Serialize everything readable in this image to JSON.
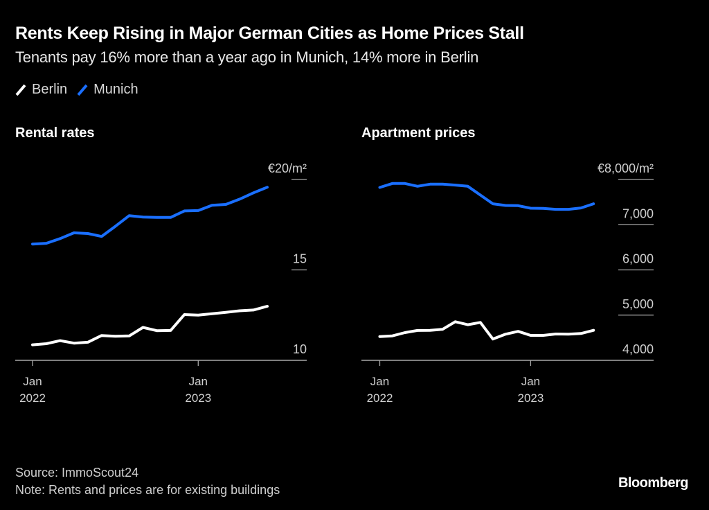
{
  "header": {
    "title": "Rents Keep Rising in Major German Cities as Home Prices Stall",
    "subtitle": "Tenants pay 16% more than a year ago in Munich, 14% more in Berlin"
  },
  "legend": [
    {
      "name": "Berlin",
      "color": "#ffffff"
    },
    {
      "name": "Munich",
      "color": "#1a6fff"
    }
  ],
  "footer": {
    "source": "Source: ImmoScout24",
    "note": "Note: Rents and prices are for existing buildings",
    "brand": "Bloomberg"
  },
  "chart_data": [
    {
      "type": "line",
      "title": "Rental rates",
      "ylabel": "€20/m²",
      "ylim": [
        10,
        20
      ],
      "yticks": [
        {
          "value": 20,
          "label": "€20/m²"
        },
        {
          "value": 15,
          "label": "15"
        },
        {
          "value": 10,
          "label": "10"
        }
      ],
      "xticks": [
        {
          "index": 0,
          "label": [
            "Jan",
            "2022"
          ]
        },
        {
          "index": 12,
          "label": [
            "Jan",
            "2023"
          ]
        }
      ],
      "x": [
        "2022-01",
        "2022-02",
        "2022-03",
        "2022-04",
        "2022-05",
        "2022-06",
        "2022-07",
        "2022-08",
        "2022-09",
        "2022-10",
        "2022-11",
        "2022-12",
        "2023-01",
        "2023-02",
        "2023-03",
        "2023-04",
        "2023-05",
        "2023-06"
      ],
      "series": [
        {
          "name": "Munich",
          "color": "#1a6fff",
          "values": [
            16.43,
            16.47,
            16.73,
            17.05,
            17.01,
            16.85,
            17.41,
            18.0,
            17.92,
            17.9,
            17.9,
            18.26,
            18.28,
            18.57,
            18.62,
            18.91,
            19.26,
            19.57
          ]
        },
        {
          "name": "Berlin",
          "color": "#ffffff",
          "values": [
            10.86,
            10.92,
            11.09,
            10.95,
            11.0,
            11.37,
            11.33,
            11.35,
            11.82,
            11.64,
            11.65,
            12.53,
            12.5,
            12.58,
            12.65,
            12.74,
            12.78,
            12.99
          ]
        }
      ],
      "grid": true,
      "legend": "top-left"
    },
    {
      "type": "line",
      "title": "Apartment prices",
      "ylabel": "€8,000/m²",
      "ylim": [
        4000,
        8000
      ],
      "yticks": [
        {
          "value": 8000,
          "label": "€8,000/m²"
        },
        {
          "value": 7000,
          "label": "7,000"
        },
        {
          "value": 6000,
          "label": "6,000"
        },
        {
          "value": 5000,
          "label": "5,000"
        },
        {
          "value": 4000,
          "label": "4,000"
        }
      ],
      "xticks": [
        {
          "index": 0,
          "label": [
            "Jan",
            "2022"
          ]
        },
        {
          "index": 12,
          "label": [
            "Jan",
            "2023"
          ]
        }
      ],
      "x": [
        "2022-01",
        "2022-02",
        "2022-03",
        "2022-04",
        "2022-05",
        "2022-06",
        "2022-07",
        "2022-08",
        "2022-09",
        "2022-10",
        "2022-11",
        "2022-12",
        "2023-01",
        "2023-02",
        "2023-03",
        "2023-04",
        "2023-05",
        "2023-06"
      ],
      "series": [
        {
          "name": "Munich",
          "color": "#1a6fff",
          "values": [
            7824,
            7911,
            7911,
            7850,
            7896,
            7896,
            7876,
            7850,
            7655,
            7462,
            7425,
            7420,
            7364,
            7359,
            7339,
            7339,
            7370,
            7462
          ]
        },
        {
          "name": "Berlin",
          "color": "#ffffff",
          "values": [
            4526,
            4541,
            4613,
            4660,
            4664,
            4686,
            4854,
            4787,
            4839,
            4471,
            4578,
            4640,
            4552,
            4552,
            4583,
            4578,
            4593,
            4664
          ]
        }
      ],
      "grid": true,
      "legend": "top-left"
    }
  ]
}
